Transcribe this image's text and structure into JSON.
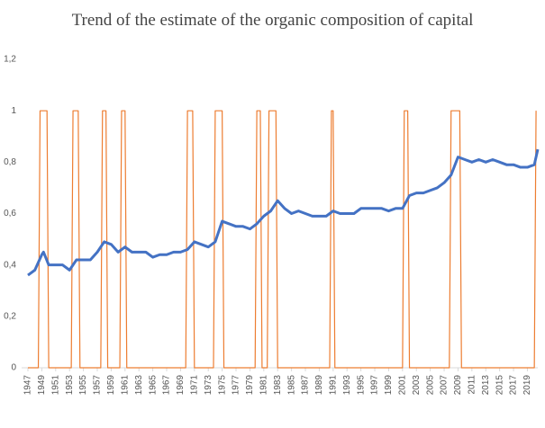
{
  "chart_data": {
    "type": "line",
    "title": "Trend of the estimate of the organic composition of capital",
    "xlim": [
      1947,
      2020.5
    ],
    "xticks": [
      1947,
      1949,
      1951,
      1953,
      1955,
      1957,
      1959,
      1961,
      1963,
      1965,
      1967,
      1969,
      1971,
      1973,
      1975,
      1977,
      1979,
      1981,
      1983,
      1985,
      1987,
      1989,
      1991,
      1993,
      1995,
      1997,
      1999,
      2001,
      2003,
      2005,
      2007,
      2009,
      2011,
      2013,
      2015,
      2017,
      2019
    ],
    "ylim": [
      0,
      1.2
    ],
    "yticks": [
      {
        "value": 0,
        "label": "0"
      },
      {
        "value": 0.2,
        "label": "0,2"
      },
      {
        "value": 0.4,
        "label": "0,4"
      },
      {
        "value": 0.6,
        "label": "0,6"
      },
      {
        "value": 0.8,
        "label": "0,8"
      },
      {
        "value": 1,
        "label": "1"
      },
      {
        "value": 1.2,
        "label": "1,2"
      }
    ],
    "grid": false,
    "series": [
      {
        "color": "#ed7d31",
        "width": 1.2,
        "x": [
          1947,
          1948.5,
          1948.75,
          1949.75,
          1950,
          1953.25,
          1953.5,
          1954.25,
          1954.5,
          1957.5,
          1957.75,
          1958.25,
          1958.5,
          1960.25,
          1960.5,
          1961,
          1961.25,
          1969.75,
          1970,
          1970.75,
          1971,
          1973.75,
          1974,
          1975,
          1975.25,
          1979.75,
          1980,
          1980.5,
          1980.75,
          1981.5,
          1981.75,
          1982.75,
          1983,
          1990.5,
          1990.75,
          1991,
          1991.25,
          2001,
          2001.25,
          2001.75,
          2002,
          2007.75,
          2008,
          2009.25,
          2009.5,
          2020,
          2020.25
        ],
        "values": [
          0,
          0,
          1,
          1,
          0,
          0,
          1,
          1,
          0,
          0,
          1,
          1,
          0,
          0,
          1,
          1,
          0,
          0,
          1,
          1,
          0,
          0,
          1,
          1,
          0,
          0,
          1,
          1,
          0,
          0,
          1,
          1,
          0,
          0,
          1,
          1,
          0,
          0,
          1,
          1,
          0,
          0,
          1,
          1,
          0,
          0,
          1
        ]
      },
      {
        "color": "#4472c4",
        "width": 3,
        "x": [
          1947,
          1948,
          1949,
          1949.25,
          1950,
          1951,
          1952,
          1953,
          1954,
          1955,
          1956,
          1957,
          1958,
          1959,
          1960,
          1961,
          1962,
          1963,
          1964,
          1965,
          1966,
          1967,
          1968,
          1969,
          1970,
          1971,
          1972,
          1973,
          1974,
          1975,
          1976,
          1977,
          1978,
          1979,
          1980,
          1981,
          1982,
          1983,
          1984,
          1985,
          1986,
          1987,
          1988,
          1989,
          1990,
          1991,
          1992,
          1993,
          1994,
          1995,
          1996,
          1997,
          1998,
          1999,
          2000,
          2001,
          2002,
          2003,
          2004,
          2005,
          2006,
          2007,
          2008,
          2009,
          2010,
          2011,
          2012,
          2013,
          2014,
          2015,
          2016,
          2017,
          2018,
          2019,
          2020,
          2020.5
        ],
        "values": [
          0.36,
          0.38,
          0.44,
          0.45,
          0.4,
          0.4,
          0.4,
          0.38,
          0.42,
          0.42,
          0.42,
          0.45,
          0.49,
          0.48,
          0.45,
          0.47,
          0.45,
          0.45,
          0.45,
          0.43,
          0.44,
          0.44,
          0.45,
          0.45,
          0.46,
          0.49,
          0.48,
          0.47,
          0.49,
          0.57,
          0.56,
          0.55,
          0.55,
          0.54,
          0.56,
          0.59,
          0.61,
          0.65,
          0.62,
          0.6,
          0.61,
          0.6,
          0.59,
          0.59,
          0.59,
          0.61,
          0.6,
          0.6,
          0.6,
          0.62,
          0.62,
          0.62,
          0.62,
          0.61,
          0.62,
          0.62,
          0.67,
          0.68,
          0.68,
          0.69,
          0.7,
          0.72,
          0.75,
          0.82,
          0.81,
          0.8,
          0.81,
          0.8,
          0.81,
          0.8,
          0.79,
          0.79,
          0.78,
          0.78,
          0.79,
          0.85
        ]
      }
    ]
  }
}
